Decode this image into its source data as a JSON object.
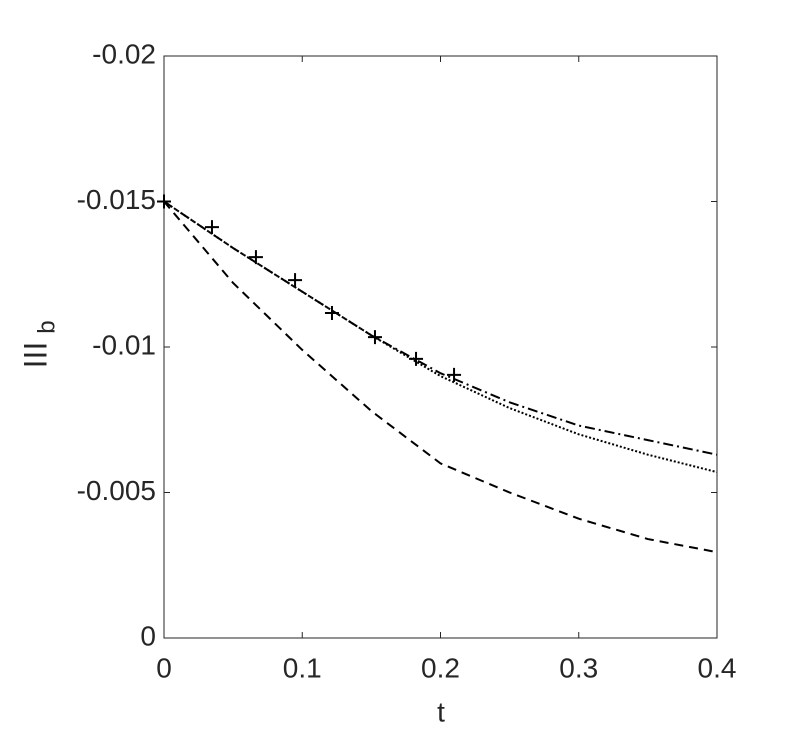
{
  "chart_data": {
    "type": "line",
    "x_label": "t",
    "y_label": "III",
    "y_label_sub": "b",
    "xlim": [
      0,
      0.4
    ],
    "ylim": [
      0,
      -0.02
    ],
    "xticks": [
      0,
      0.1,
      0.2,
      0.3,
      0.4
    ],
    "yticks": [
      0,
      -0.005,
      -0.01,
      -0.015,
      -0.02
    ],
    "series": [
      {
        "style": "dashdot",
        "color": "#000000",
        "x": [
          0,
          0.05,
          0.1,
          0.15,
          0.2,
          0.25,
          0.3,
          0.35,
          0.4
        ],
        "values": [
          -0.015,
          -0.0134,
          -0.0119,
          -0.0104,
          -0.0091,
          -0.0081,
          -0.0073,
          -0.0068,
          -0.0063
        ]
      },
      {
        "style": "dotted",
        "color": "#000000",
        "x": [
          0,
          0.05,
          0.1,
          0.15,
          0.2,
          0.25,
          0.3,
          0.35,
          0.4
        ],
        "values": [
          -0.015,
          -0.0134,
          -0.0119,
          -0.0104,
          -0.009,
          -0.0079,
          -0.007,
          -0.0063,
          -0.0057
        ]
      },
      {
        "style": "dashed",
        "color": "#000000",
        "x": [
          0,
          0.05,
          0.1,
          0.15,
          0.2,
          0.25,
          0.3,
          0.35,
          0.4
        ],
        "values": [
          -0.015,
          -0.0122,
          -0.0099,
          -0.0078,
          -0.006,
          -0.005,
          -0.0041,
          -0.0034,
          -0.00295
        ]
      },
      {
        "style": "plus",
        "color": "#000000",
        "x": [
          0,
          0.0347,
          0.0665,
          0.0948,
          0.1215,
          0.1526,
          0.1823,
          0.2098
        ],
        "values": [
          -0.015,
          -0.01412,
          -0.01309,
          -0.0123,
          -0.01117,
          -0.01034,
          -0.00959,
          -0.00904
        ]
      }
    ]
  }
}
